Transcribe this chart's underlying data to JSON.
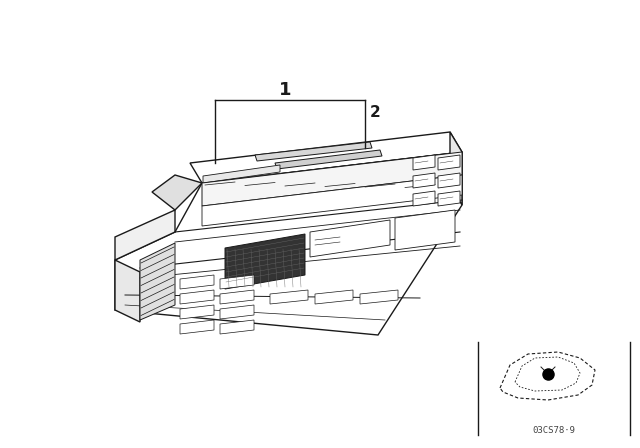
{
  "bg_color": "#ffffff",
  "line_color": "#1a1a1a",
  "fig_width": 6.4,
  "fig_height": 4.48,
  "dpi": 100,
  "label1": "1",
  "label2": "2",
  "watermark": "03CS78·9"
}
